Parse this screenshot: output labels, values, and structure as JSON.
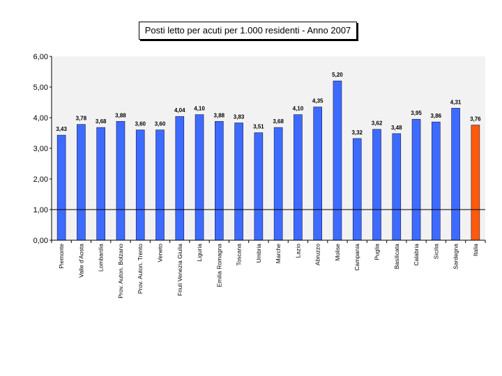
{
  "chart_data": {
    "type": "bar",
    "title": "Posti letto per acuti per 1.000 residenti - Anno 2007",
    "xlabel": "",
    "ylabel": "",
    "ylim": [
      0,
      6
    ],
    "yticks": [
      "0,00",
      "1,00",
      "2,00",
      "3,00",
      "4,00",
      "5,00",
      "6,00"
    ],
    "grid": false,
    "reference_line": 1.0,
    "categories": [
      "Piemonte",
      "Valle d'Aosta",
      "Lombardia",
      "Prov. Auton. Bolzano",
      "Prov. Auton. Trento",
      "Veneto",
      "Friuli Venezia Giulia",
      "Liguria",
      "Emilia Romagna",
      "Toscana",
      "Umbria",
      "Marche",
      "Lazio",
      "Abruzzo",
      "Molise",
      "Campania",
      "Puglia",
      "Basilicata",
      "Calabria",
      "Sicilia",
      "Sardegna",
      "Italia"
    ],
    "values": [
      3.43,
      3.78,
      3.68,
      3.88,
      3.6,
      3.6,
      4.04,
      4.1,
      3.88,
      3.83,
      3.51,
      3.68,
      4.1,
      4.35,
      5.2,
      3.32,
      3.62,
      3.48,
      3.95,
      3.86,
      4.31,
      3.76
    ],
    "value_labels": [
      "3,43",
      "3,78",
      "3,68",
      "3,88",
      "3,60",
      "3,60",
      "4,04",
      "4,10",
      "3,88",
      "3,83",
      "3,51",
      "3,68",
      "4,10",
      "4,35",
      "5,20",
      "3,32",
      "3,62",
      "3,48",
      "3,95",
      "3,86",
      "4,31",
      "3,76"
    ],
    "colors": {
      "bar": "#3d6bff",
      "highlight": "#ff5a0a",
      "plot_bg": "#f2f2f2"
    },
    "highlight_category": "Italia"
  }
}
